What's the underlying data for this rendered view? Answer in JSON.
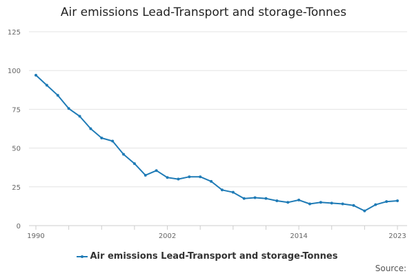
{
  "chart_data": {
    "type": "line",
    "title": "Air emissions Lead-Transport and storage-Tonnes",
    "xlabel": "",
    "ylabel": "",
    "x": [
      1990,
      1991,
      1992,
      1993,
      1994,
      1995,
      1996,
      1997,
      1998,
      1999,
      2000,
      2001,
      2002,
      2003,
      2004,
      2005,
      2006,
      2007,
      2008,
      2009,
      2010,
      2011,
      2012,
      2013,
      2014,
      2015,
      2016,
      2017,
      2018,
      2019,
      2020,
      2021,
      2022,
      2023
    ],
    "series": [
      {
        "name": "Air emissions Lead-Transport and storage-Tonnes",
        "color": "#1f7bb6",
        "values": [
          97,
          90.5,
          84,
          75.5,
          70.5,
          62.5,
          56.5,
          54.5,
          46,
          40,
          32.5,
          35.5,
          31,
          30,
          31.5,
          31.5,
          28.5,
          23,
          21.5,
          17.5,
          18,
          17.5,
          16,
          15,
          16.5,
          14,
          15,
          14.5,
          14,
          13,
          9.5,
          13.5,
          15.5,
          16
        ]
      }
    ],
    "x_ticks": [
      "1990",
      "2002",
      "2014",
      "2023"
    ],
    "y_ticks": [
      "0",
      "25",
      "50",
      "75",
      "100",
      "125"
    ],
    "xlim": [
      1990,
      2023
    ],
    "ylim": [
      0,
      125
    ],
    "grid": true,
    "legend_position": "bottom"
  },
  "footer": {
    "source_label": "Source:"
  }
}
